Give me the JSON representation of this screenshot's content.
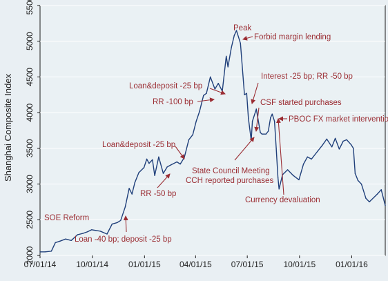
{
  "chart_data": {
    "type": "line",
    "title": "",
    "xlabel": "",
    "ylabel": "Shanghai Composite Index",
    "ylim": [
      2000,
      5500
    ],
    "xlim": [
      "2014-07-01",
      "2016-02-29"
    ],
    "yticks": [
      2000,
      2500,
      3000,
      3500,
      4000,
      4500,
      5000,
      5500
    ],
    "xticks": [
      {
        "date": "2014-07-01",
        "label": "07/01/14"
      },
      {
        "date": "2014-10-01",
        "label": "10/01/14"
      },
      {
        "date": "2015-01-01",
        "label": "01/01/15"
      },
      {
        "date": "2015-04-01",
        "label": "04/01/15"
      },
      {
        "date": "2015-07-01",
        "label": "07/01/15"
      },
      {
        "date": "2015-10-01",
        "label": "10/01/15"
      },
      {
        "date": "2016-01-01",
        "label": "01/01/16"
      }
    ],
    "grid": true,
    "line_color": "#1f3f7a",
    "annotation_color": "#9b2d33",
    "series": [
      {
        "x": [
          "2014-07-01",
          "2014-07-10",
          "2014-07-21",
          "2014-07-28",
          "2014-08-05",
          "2014-08-15",
          "2014-08-25",
          "2014-09-05",
          "2014-09-15",
          "2014-09-22",
          "2014-09-30",
          "2014-10-15",
          "2014-10-27",
          "2014-11-05",
          "2014-11-14",
          "2014-11-20",
          "2014-11-28",
          "2014-12-05",
          "2014-12-10",
          "2014-12-15",
          "2014-12-22",
          "2014-12-31",
          "2015-01-05",
          "2015-01-09",
          "2015-01-15",
          "2015-01-19",
          "2015-01-26",
          "2015-02-03",
          "2015-02-10",
          "2015-02-17",
          "2015-02-27",
          "2015-03-05",
          "2015-03-12",
          "2015-03-20",
          "2015-03-27",
          "2015-04-02",
          "2015-04-08",
          "2015-04-15",
          "2015-04-20",
          "2015-04-27",
          "2015-05-05",
          "2015-05-11",
          "2015-05-18",
          "2015-05-25",
          "2015-05-28",
          "2015-06-03",
          "2015-06-08",
          "2015-06-12",
          "2015-06-17",
          "2015-06-19",
          "2015-06-26",
          "2015-06-30",
          "2015-07-03",
          "2015-07-08",
          "2015-07-10",
          "2015-07-17",
          "2015-07-24",
          "2015-07-27",
          "2015-08-03",
          "2015-08-07",
          "2015-08-11",
          "2015-08-14",
          "2015-08-18",
          "2015-08-21",
          "2015-08-24",
          "2015-08-26",
          "2015-09-01",
          "2015-09-10",
          "2015-09-20",
          "2015-09-30",
          "2015-10-08",
          "2015-10-15",
          "2015-10-22",
          "2015-11-02",
          "2015-11-10",
          "2015-11-18",
          "2015-11-27",
          "2015-12-03",
          "2015-12-10",
          "2015-12-17",
          "2015-12-23",
          "2015-12-31",
          "2016-01-04",
          "2016-01-07",
          "2016-01-12",
          "2016-01-18",
          "2016-01-26",
          "2016-02-01",
          "2016-02-15",
          "2016-02-22",
          "2016-02-29"
        ],
        "values": [
          2050,
          2050,
          2060,
          2180,
          2200,
          2230,
          2210,
          2290,
          2310,
          2330,
          2360,
          2340,
          2300,
          2440,
          2460,
          2490,
          2680,
          2940,
          2860,
          3020,
          3160,
          3230,
          3350,
          3290,
          3340,
          3120,
          3380,
          3150,
          3240,
          3270,
          3310,
          3280,
          3370,
          3620,
          3690,
          3880,
          4020,
          4240,
          4270,
          4500,
          4330,
          4410,
          4300,
          4790,
          4640,
          4910,
          5080,
          5150,
          5020,
          4970,
          4250,
          4270,
          3920,
          3610,
          3880,
          4050,
          3720,
          3700,
          3700,
          3740,
          3930,
          3980,
          3880,
          3500,
          3090,
          2930,
          3130,
          3200,
          3120,
          3060,
          3280,
          3380,
          3350,
          3460,
          3540,
          3630,
          3520,
          3640,
          3490,
          3600,
          3620,
          3550,
          3500,
          3150,
          3050,
          3000,
          2800,
          2750,
          2860,
          2920,
          2700
        ]
      }
    ],
    "annotations": [
      {
        "text": "Peak"
      },
      {
        "text": "Forbid margin lending"
      },
      {
        "text": "Interest -25 bp; RR -50 bp"
      },
      {
        "text": "Loan&deposit -25 bp"
      },
      {
        "text": "RR -100 bp"
      },
      {
        "text": "CSF started purchases"
      },
      {
        "text": "PBOC FX market intervention"
      },
      {
        "text": "Loan&deposit -25 bp"
      },
      {
        "text": "State Council Meeting"
      },
      {
        "text": "CCH reported purchases"
      },
      {
        "text": "RR -50 bp"
      },
      {
        "text": "Currency devaluation"
      },
      {
        "text": "SOE Reform"
      },
      {
        "text": "Loan -40 bp; deposit -25 bp"
      }
    ]
  }
}
